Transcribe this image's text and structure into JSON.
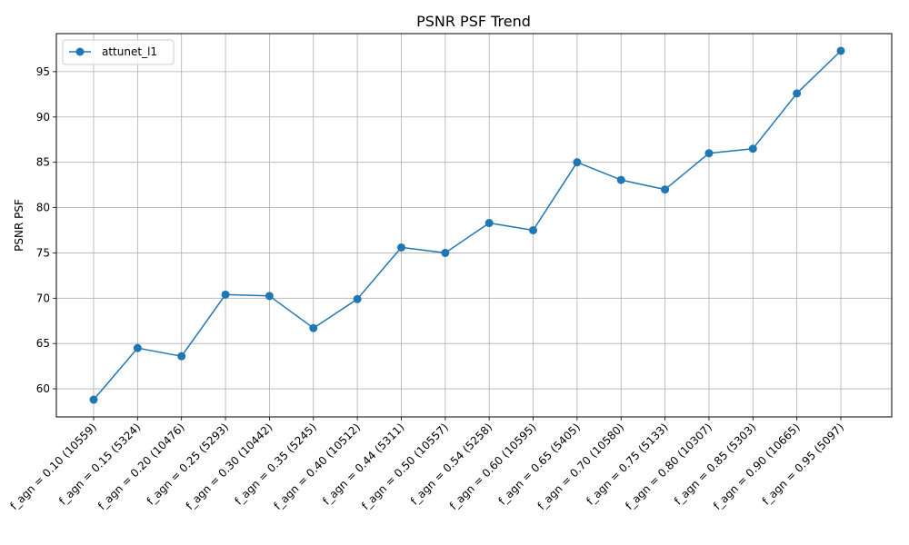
{
  "chart_data": {
    "type": "line",
    "title": "PSNR PSF Trend",
    "xlabel": "",
    "ylabel": "PSNR PSF",
    "categories": [
      "f_agn = 0.10 (10559)",
      "f_agn = 0.15 (5324)",
      "f_agn = 0.20 (10476)",
      "f_agn = 0.25 (5293)",
      "f_agn = 0.30 (10442)",
      "f_agn = 0.35 (5245)",
      "f_agn = 0.40 (10512)",
      "f_agn = 0.44 (5311)",
      "f_agn = 0.50 (10557)",
      "f_agn = 0.54 (5258)",
      "f_agn = 0.60 (10595)",
      "f_agn = 0.65 (5405)",
      "f_agn = 0.70 (10580)",
      "f_agn = 0.75 (5133)",
      "f_agn = 0.80 (10307)",
      "f_agn = 0.85 (5303)",
      "f_agn = 0.90 (10665)",
      "f_agn = 0.95 (5097)"
    ],
    "series": [
      {
        "name": "attunet_l1",
        "color": "#1f77b4",
        "marker": "circle",
        "values": [
          58.8,
          64.5,
          63.6,
          70.4,
          70.25,
          66.7,
          69.9,
          75.6,
          75.0,
          78.3,
          77.5,
          85.0,
          83.05,
          82.0,
          86.0,
          86.5,
          92.6,
          97.3
        ]
      }
    ],
    "ylim": [
      56.9,
      99.2
    ],
    "yticks": [
      60,
      65,
      70,
      75,
      80,
      85,
      90,
      95
    ],
    "grid": true,
    "legend_position": "top-left"
  }
}
